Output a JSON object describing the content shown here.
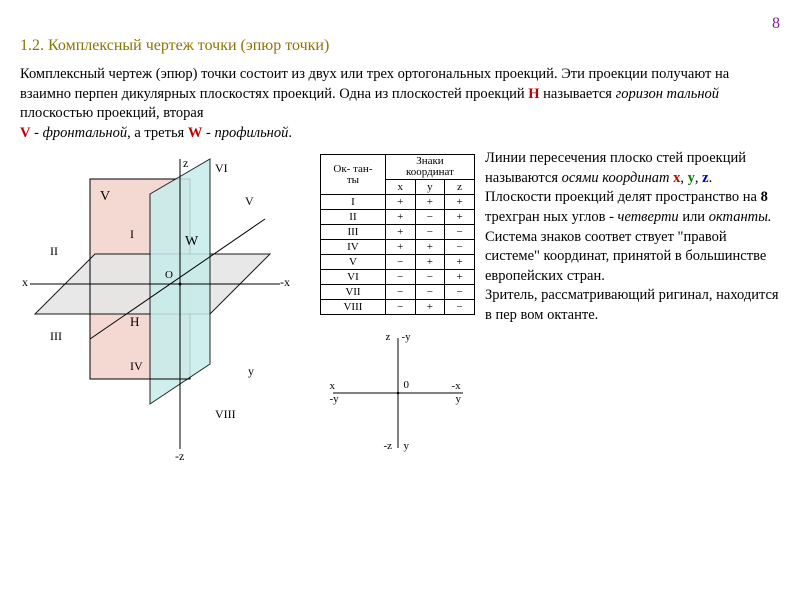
{
  "page_number": "8",
  "heading": "1.2. Комплексный чертеж точки (эпюр точки)",
  "intro_parts": {
    "p1": "Комплексный чертеж (эпюр) точки состоит из двух или трех ортогональных проекций. Эти проекции получают на взаимно перпен дикулярных плоскостях проекций. Одна из плоскостей проекций ",
    "H": "H",
    "p2": " называется ",
    "it1": "горизон тальной",
    "p3": " плоскостью проекций, вторая ",
    "V": "V",
    "p4": " - ",
    "it2": "фронтальной",
    "p5": ", а третья ",
    "W": "W",
    "p6": " - ",
    "it3": "профильной",
    "p7": "."
  },
  "diagram_labels": {
    "z": "z",
    "nz": "-z",
    "y": "y",
    "x": "x",
    "nx": "-x",
    "V": "V",
    "W": "W",
    "H": "H",
    "O": "O",
    "I": "I",
    "II": "II",
    "III": "III",
    "IV": "IV",
    "Vr": "V",
    "VIr": "VI",
    "VIII": "VIII"
  },
  "colors": {
    "V_plane": "#f4d9d3",
    "W_plane": "#c7ecec",
    "H_plane": "#e6e6e6",
    "stroke": "#000000"
  },
  "table": {
    "header1": "Ок-\nтан-\nты",
    "header2": "Знаки\nкоординат",
    "cols": [
      "x",
      "y",
      "z"
    ],
    "rows": [
      [
        "I",
        "+",
        "+",
        "+"
      ],
      [
        "II",
        "+",
        "−",
        "+"
      ],
      [
        "III",
        "+",
        "−",
        "−"
      ],
      [
        "IV",
        "+",
        "+",
        "−"
      ],
      [
        "V",
        "−",
        "+",
        "+"
      ],
      [
        "VI",
        "−",
        "−",
        "+"
      ],
      [
        "VII",
        "−",
        "−",
        "−"
      ],
      [
        "VIII",
        "−",
        "+",
        "−"
      ]
    ]
  },
  "epure_labels": {
    "z": "z",
    "ny": "-y",
    "x": "x",
    "ny2": "-y",
    "zero": "0",
    "nx": "-x",
    "y": "y",
    "nz": "-z",
    "y2": "y"
  },
  "right_text": {
    "r1": "Линии пересечения плоско стей проекций называются ",
    "it_axes": "осями координат ",
    "ax_x": "x",
    "c1": ", ",
    "ax_y": "y",
    "c2": ", ",
    "ax_z": "z",
    "dot": ".",
    "r2": " Плоскости проекций делят пространство на ",
    "b8": "8",
    "r3": " трехгран ных углов - ",
    "it_q": "четверти",
    "r4": " или ",
    "it_o": "октанты.",
    "r5": " Система знаков соответ ствует \"правой системе\" координат, принятой в большинстве европейских стран.",
    "r6": "Зритель, рассматривающий ригинал, находится в пер вом октанте."
  }
}
